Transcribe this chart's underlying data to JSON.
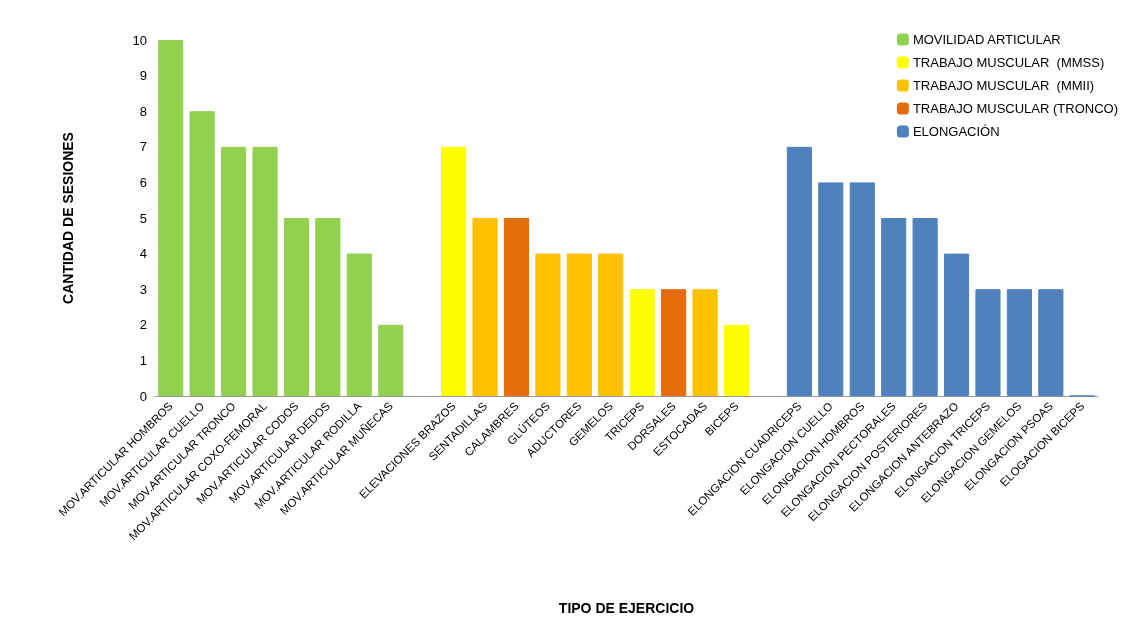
{
  "chart_data": {
    "type": "bar",
    "xlabel": "TIPO DE EJERCICIO",
    "ylabel": "CANTIDAD DE SESIONES",
    "categories": [
      "MOV.ARTICULAR HOMBROS",
      "MOV.ARTICULAR CUELLO",
      "MOV.ARTICULAR TRONCO",
      "MOV.ARTICULAR COXO-FEMORAL",
      "MOV.ARTICULAR CODOS",
      "MOV.ARTICULAR DEDOS",
      "MOV.ARTICULAR RODILLA",
      "MOV.ARTICULAR MUÑECAS",
      null,
      "ELEVACIONES BRAZOS",
      "SENTADILLAS",
      "CALAMBRES",
      "GLÚTEOS",
      "ADUCTORES",
      "GEMELOS",
      "TRICEPS",
      "DORSALES",
      "ESTOCADAS",
      "BICEPS",
      null,
      "ELONGACION CUADRICEPS",
      "ELONGACION CUELLO",
      "ELONGACION HOMBROS",
      "ELONGACION PECTORALES",
      "ELONGACION POSTERIORES",
      "ELONGACION ANTEBRAZO",
      "ELONGACION TRICEPS",
      "ELONGACION GEMELOS",
      "ELONGACION PSOAS",
      "ELOGACION BICEPS"
    ],
    "series": [
      {
        "name": "MOVILIDAD ARTICULAR",
        "color": "#92d050",
        "values": [
          10,
          8,
          7,
          7,
          5,
          5,
          4,
          2,
          null,
          null,
          null,
          null,
          null,
          null,
          null,
          null,
          null,
          null,
          null,
          null,
          null,
          null,
          null,
          null,
          null,
          null,
          null,
          null,
          null,
          null
        ]
      },
      {
        "name": "TRABAJO MUSCULAR  (MMSS)",
        "color": "#ffff00",
        "values": [
          null,
          null,
          null,
          null,
          null,
          null,
          null,
          null,
          null,
          7,
          null,
          null,
          null,
          null,
          null,
          3,
          null,
          null,
          2,
          null,
          null,
          null,
          null,
          null,
          null,
          null,
          null,
          null,
          null,
          null
        ]
      },
      {
        "name": "TRABAJO MUSCULAR  (MMII)",
        "color": "#ffc000",
        "values": [
          null,
          null,
          null,
          null,
          null,
          null,
          null,
          null,
          null,
          null,
          5,
          null,
          4,
          4,
          4,
          null,
          null,
          3,
          null,
          null,
          null,
          null,
          null,
          null,
          null,
          null,
          null,
          null,
          null,
          null
        ]
      },
      {
        "name": "TRABAJO MUSCULAR (TRONCO)",
        "color": "#e46c0a",
        "values": [
          null,
          null,
          null,
          null,
          null,
          null,
          null,
          null,
          null,
          null,
          null,
          5,
          null,
          null,
          null,
          null,
          3,
          null,
          null,
          null,
          null,
          null,
          null,
          null,
          null,
          null,
          null,
          null,
          null,
          null
        ]
      },
      {
        "name": "ELONGACIÓN",
        "color": "#4f81bd",
        "values": [
          null,
          null,
          null,
          null,
          null,
          null,
          null,
          null,
          null,
          null,
          null,
          null,
          null,
          null,
          null,
          null,
          null,
          null,
          null,
          null,
          7,
          6,
          6,
          5,
          5,
          4,
          3,
          3,
          3,
          0
        ]
      }
    ],
    "stacked": true,
    "ylim": [
      0,
      10
    ],
    "yticks": [
      0,
      1,
      2,
      3,
      4,
      5,
      6,
      7,
      8,
      9,
      10
    ],
    "grid": false,
    "legend": "top right"
  }
}
